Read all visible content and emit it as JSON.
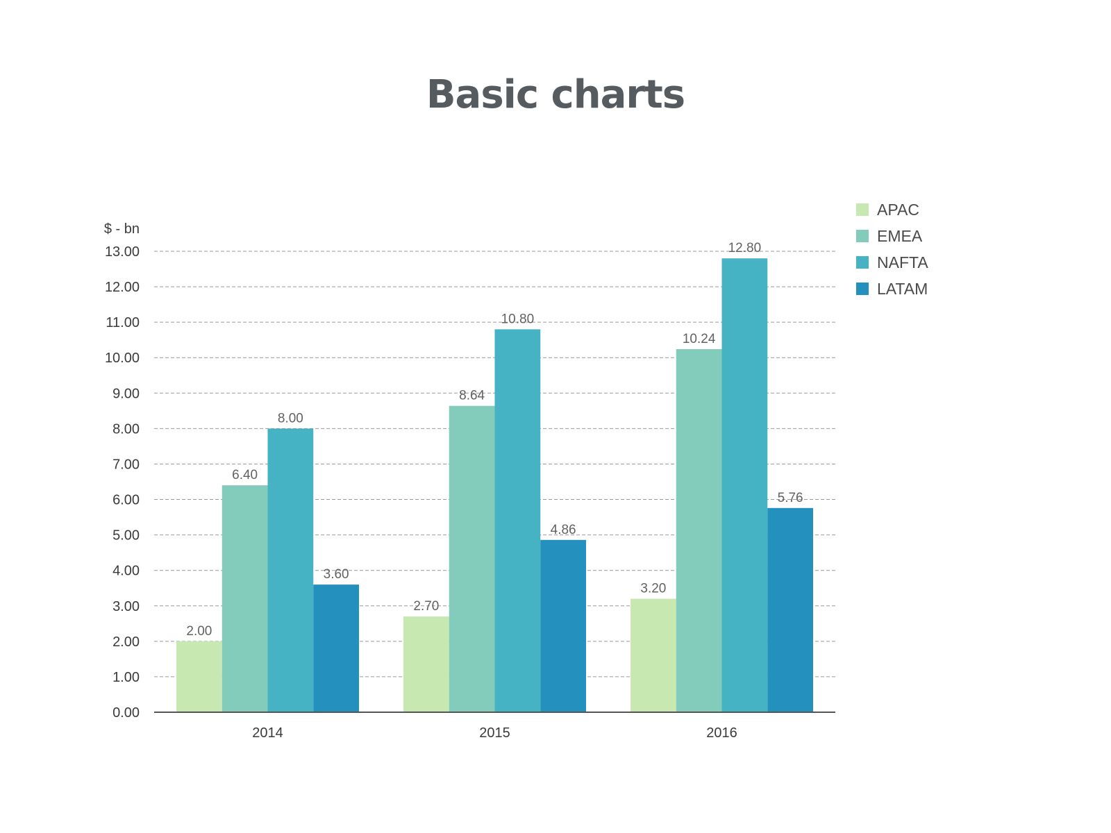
{
  "chart_data": {
    "type": "bar",
    "title": "Basic charts",
    "ylabel": "$ - bn",
    "xlabel": "",
    "categories": [
      "2014",
      "2015",
      "2016"
    ],
    "series": [
      {
        "name": "APAC",
        "color": "#c8e8b2",
        "values": [
          2.0,
          2.7,
          3.2
        ],
        "labels": [
          "2.00",
          "2.70",
          "3.20"
        ]
      },
      {
        "name": "EMEA",
        "color": "#83ccbb",
        "values": [
          6.4,
          8.64,
          10.24
        ],
        "labels": [
          "6.40",
          "8.64",
          "10.24"
        ]
      },
      {
        "name": "NAFTA",
        "color": "#45b3c3",
        "values": [
          8.0,
          10.8,
          12.8
        ],
        "labels": [
          "8.00",
          "10.80",
          "12.80"
        ]
      },
      {
        "name": "LATAM",
        "color": "#2490be",
        "values": [
          3.6,
          4.86,
          5.76
        ],
        "labels": [
          "3.60",
          "4.86",
          "5.76"
        ]
      }
    ],
    "ylim": [
      0,
      13
    ],
    "yticks": [
      "0.00",
      "1.00",
      "2.00",
      "3.00",
      "4.00",
      "5.00",
      "6.00",
      "7.00",
      "8.00",
      "9.00",
      "10.00",
      "11.00",
      "12.00",
      "13.00"
    ],
    "grid": true,
    "grid_style": "dashed",
    "legend_position": "top-right"
  }
}
